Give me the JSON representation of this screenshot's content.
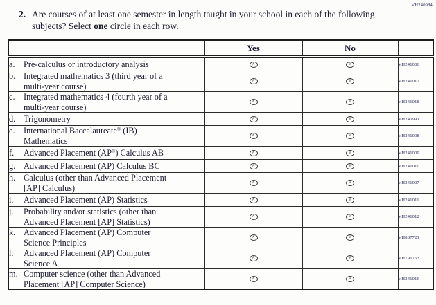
{
  "page": {
    "form_code": "VH240984"
  },
  "question": {
    "number": "2.",
    "line1": "Are courses of at least one semester in length taught in your school in each of the",
    "line2_before": "following subjects? Select ",
    "line2_bold": "one",
    "line2_after": " circle in each row."
  },
  "table": {
    "columns": {
      "yes": "Yes",
      "no": "No"
    },
    "oval": {
      "yes_letter": "A",
      "no_letter": "B"
    },
    "rows": [
      {
        "letter": "a.",
        "line1": "Pre-calculus or introductory analysis",
        "line2": "",
        "code": "VH241006"
      },
      {
        "letter": "b.",
        "line1": "Integrated mathematics 3 (third year of a",
        "line2": "multi-year course)",
        "code": "VH241017"
      },
      {
        "letter": "c.",
        "line1": "Integrated mathematics 4 (fourth year of a",
        "line2": "multi-year course)",
        "code": "VH241018"
      },
      {
        "letter": "d.",
        "line1": "Trigonometry",
        "line2": "",
        "code": "VH240991"
      },
      {
        "letter": "e.",
        "line1": "International Baccalaureate® (IB)",
        "line2": "Mathematics",
        "code": "VH241008"
      },
      {
        "letter": "f.",
        "line1": "Advanced Placement (AP®) Calculus AB",
        "line2": "",
        "code": "VH241009"
      },
      {
        "letter": "g.",
        "line1": "Advanced Placement (AP) Calculus BC",
        "line2": "",
        "code": "VH241010"
      },
      {
        "letter": "h.",
        "line1": "Calculus (other than Advanced Placement",
        "line2": "[AP] Calculus)",
        "code": "VH241007"
      },
      {
        "letter": "i.",
        "line1": "Advanced Placement (AP) Statistics",
        "line2": "",
        "code": "VH241011"
      },
      {
        "letter": "j.",
        "line1": "Probability and/or statistics (other than",
        "line2": "Advanced Placement [AP] Statistics)",
        "code": "VH241012"
      },
      {
        "letter": "k.",
        "line1": "Advanced Placement (AP) Computer",
        "line2": "Science Principles",
        "code": "VH887721"
      },
      {
        "letter": "l.",
        "line1": "Advanced Placement (AP) Computer",
        "line2": "Science A",
        "code": "VH796763"
      },
      {
        "letter": "m.",
        "line1": "Computer science (other than Advanced",
        "line2": "Placement [AP] Computer Science)",
        "code": "VH241016"
      }
    ]
  }
}
